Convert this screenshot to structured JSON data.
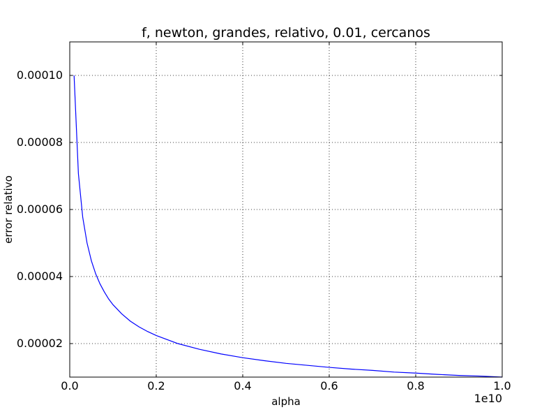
{
  "chart_data": {
    "type": "line",
    "title": "f, newton, grandes, relativo, 0.01, cercanos",
    "xlabel": "alpha",
    "ylabel": "error relativo",
    "x_offset_label": "1e10",
    "xlim": [
      0.0,
      1.0
    ],
    "ylim": [
      1e-05,
      0.00011
    ],
    "x_ticks": [
      0.0,
      0.2,
      0.4,
      0.6,
      0.8,
      1.0
    ],
    "x_tick_labels": [
      "0.0",
      "0.2",
      "0.4",
      "0.6",
      "0.8",
      "1.0"
    ],
    "y_ticks": [
      2e-05,
      4e-05,
      6e-05,
      8e-05,
      0.0001
    ],
    "y_tick_labels": [
      "0.00002",
      "0.00004",
      "0.00006",
      "0.00008",
      "0.00010"
    ],
    "grid": true,
    "series": [
      {
        "color": "#0000ff",
        "x": [
          0.01,
          0.02,
          0.03,
          0.04,
          0.05,
          0.06,
          0.07,
          0.08,
          0.09,
          0.1,
          0.12,
          0.14,
          0.16,
          0.18,
          0.2,
          0.25,
          0.3,
          0.35,
          0.4,
          0.45,
          0.5,
          0.55,
          0.6,
          0.65,
          0.7,
          0.75,
          0.8,
          0.85,
          0.9,
          0.95,
          1.0
        ],
        "y": [
          0.0001,
          7.07e-05,
          5.77e-05,
          5e-05,
          4.47e-05,
          4.08e-05,
          3.78e-05,
          3.54e-05,
          3.33e-05,
          3.16e-05,
          2.89e-05,
          2.67e-05,
          2.5e-05,
          2.36e-05,
          2.24e-05,
          2e-05,
          1.83e-05,
          1.69e-05,
          1.58e-05,
          1.49e-05,
          1.41e-05,
          1.35e-05,
          1.29e-05,
          1.24e-05,
          1.2e-05,
          1.15e-05,
          1.12e-05,
          1.08e-05,
          1.05e-05,
          1.03e-05,
          1e-05
        ]
      }
    ]
  }
}
